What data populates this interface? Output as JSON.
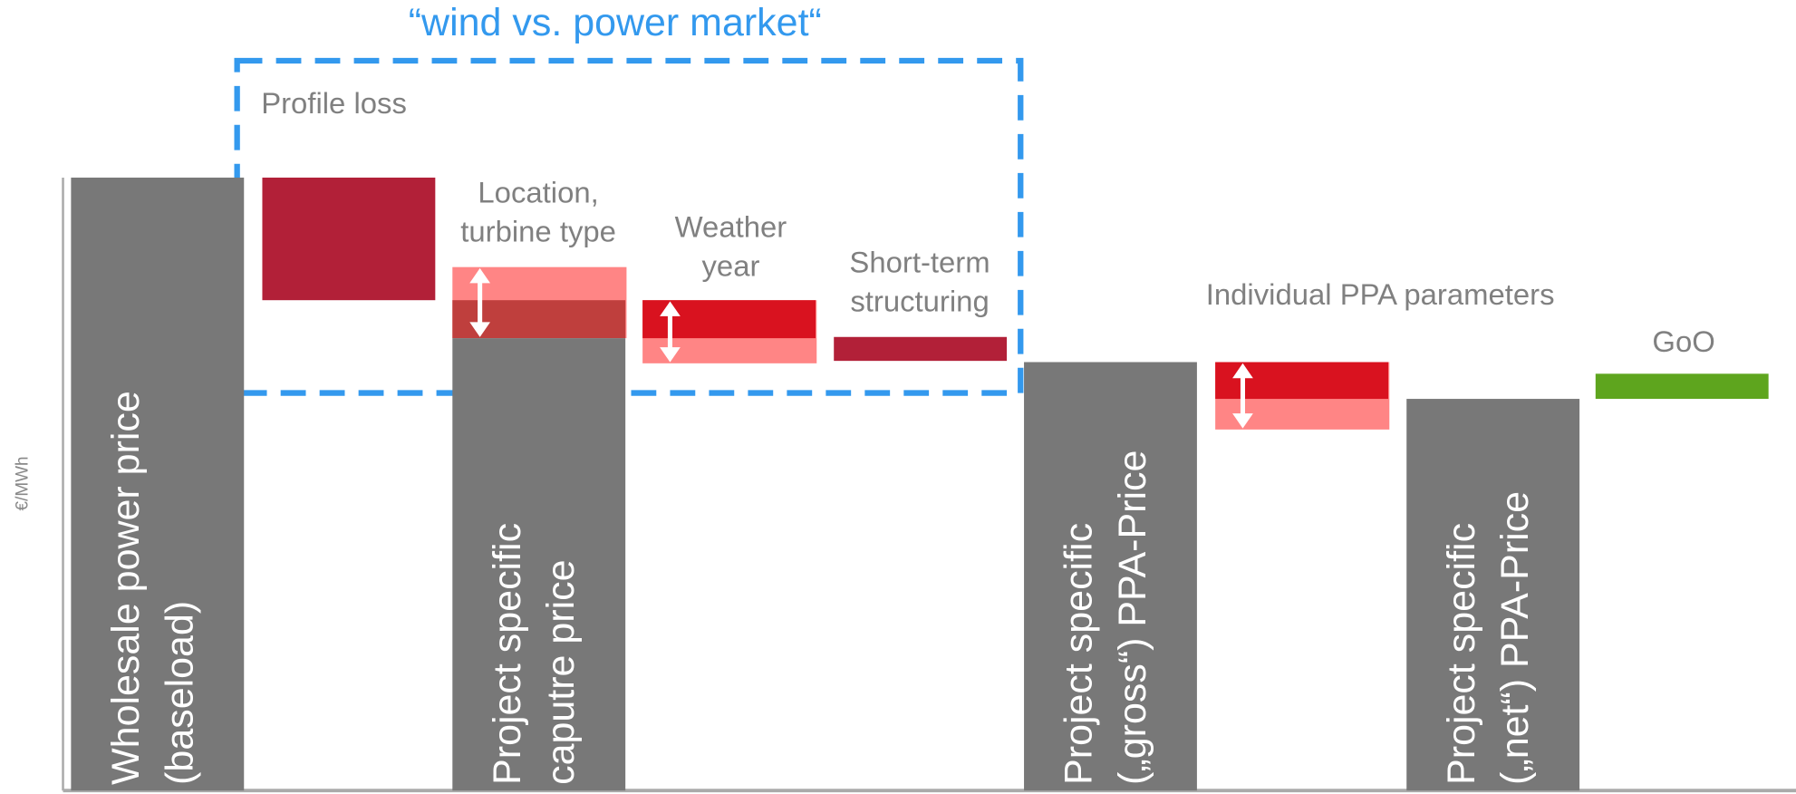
{
  "chart_data": {
    "type": "waterfall",
    "title": "“wind vs. power market“",
    "y_label": "€/MWh",
    "ylim": [
      0,
      100
    ],
    "items": [
      {
        "kind": "total",
        "label": [
          "Wholesale power price",
          "(baseload)"
        ],
        "value": 100,
        "color": "#787878"
      },
      {
        "kind": "step",
        "label": [
          "Profile loss"
        ],
        "low": 80,
        "high": 100,
        "color": "#b22038"
      },
      {
        "kind": "step",
        "label": [
          "Location,",
          "turbine type"
        ],
        "low": 73.8,
        "high": 80,
        "color": "#bf3f3d",
        "band": [
          73.8,
          85.4
        ],
        "band_color": "#ff8585"
      },
      {
        "kind": "total",
        "label": [
          "Project specific",
          "caputre price"
        ],
        "value": 73.8,
        "color": "#787878"
      },
      {
        "kind": "step",
        "label": [
          "Weather",
          "year"
        ],
        "low": 73.8,
        "high": 80,
        "color": "#d9121f",
        "band": [
          69.7,
          80
        ],
        "band_color": "#ff8585"
      },
      {
        "kind": "step",
        "label": [
          "Short-term",
          "structuring"
        ],
        "low": 70.1,
        "high": 74,
        "color": "#b22038"
      },
      {
        "kind": "total",
        "label": [
          "Project specific",
          "(„gross“) PPA-Price"
        ],
        "value": 69.9,
        "color": "#787878"
      },
      {
        "kind": "step",
        "label": [
          "Individual PPA parameters"
        ],
        "low": 63.9,
        "high": 69.9,
        "color": "#d9121f",
        "band": [
          58.9,
          69.9
        ],
        "band_color": "#ff8585"
      },
      {
        "kind": "total",
        "label": [
          "Project specific",
          "(„net“) PPA-Price"
        ],
        "value": 63.9,
        "color": "#787878"
      },
      {
        "kind": "step",
        "label": [
          "GoO"
        ],
        "low": 63.9,
        "high": 68,
        "color": "#5ea51e"
      }
    ]
  }
}
